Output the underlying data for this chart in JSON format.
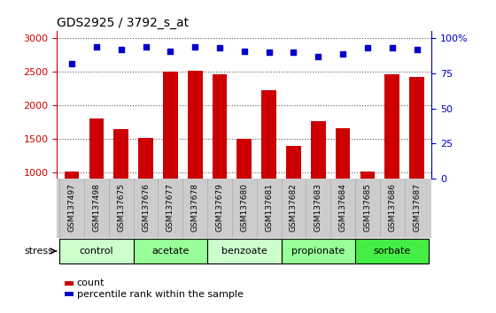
{
  "title": "GDS2925 / 3792_s_at",
  "samples": [
    "GSM137497",
    "GSM137498",
    "GSM137675",
    "GSM137676",
    "GSM137677",
    "GSM137678",
    "GSM137679",
    "GSM137680",
    "GSM137681",
    "GSM137682",
    "GSM137683",
    "GSM137684",
    "GSM137685",
    "GSM137686",
    "GSM137687"
  ],
  "counts": [
    1010,
    1800,
    1640,
    1510,
    2500,
    2510,
    2460,
    1500,
    2220,
    1390,
    1760,
    1660,
    1010,
    2460,
    2420
  ],
  "percentile_ranks": [
    82,
    94,
    92,
    94,
    91,
    94,
    93,
    91,
    90,
    90,
    87,
    89,
    93,
    93,
    92
  ],
  "bar_color": "#cc0000",
  "dot_color": "#0000cc",
  "ylim_left": [
    900,
    3100
  ],
  "ylim_right": [
    0,
    105
  ],
  "yticks_left": [
    1000,
    1500,
    2000,
    2500,
    3000
  ],
  "yticks_right": [
    0,
    25,
    50,
    75,
    100
  ],
  "yticklabels_right": [
    "0",
    "25",
    "50",
    "75",
    "100%"
  ],
  "groups": [
    {
      "label": "control",
      "start": 0,
      "end": 2,
      "color": "#ccffcc"
    },
    {
      "label": "acetate",
      "start": 3,
      "end": 5,
      "color": "#99ff99"
    },
    {
      "label": "benzoate",
      "start": 6,
      "end": 8,
      "color": "#ccffcc"
    },
    {
      "label": "propionate",
      "start": 9,
      "end": 11,
      "color": "#99ff99"
    },
    {
      "label": "sorbate",
      "start": 12,
      "end": 14,
      "color": "#44ee44"
    }
  ],
  "stress_label": "stress",
  "legend_count_label": "count",
  "legend_pct_label": "percentile rank within the sample",
  "bg_color": "#ffffff",
  "xticklabel_bg": "#cccccc",
  "dotted_grid_color": "#555555"
}
